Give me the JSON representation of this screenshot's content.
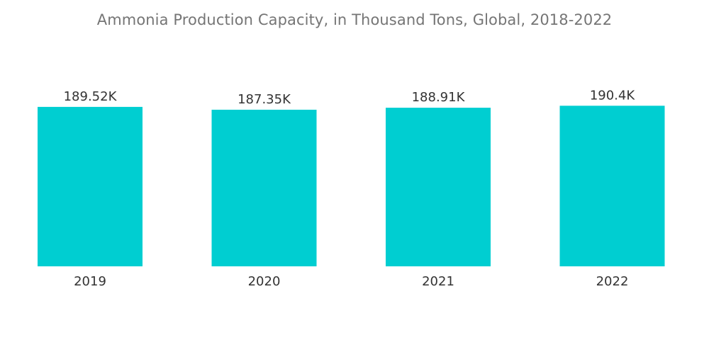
{
  "chart_data": {
    "type": "bar",
    "title": "Ammonia Production Capacity, in Thousand Tons, Global, 2018-2022",
    "categories": [
      "2019",
      "2020",
      "2021",
      "2022"
    ],
    "values": [
      189.52,
      187.35,
      188.91,
      190.4
    ],
    "data_labels": [
      "189.52K",
      "187.35K",
      "188.91K",
      "190.4K"
    ],
    "xlabel": "",
    "ylabel": "",
    "grid": false,
    "legend": "none",
    "bar_color": "#00CED1"
  }
}
